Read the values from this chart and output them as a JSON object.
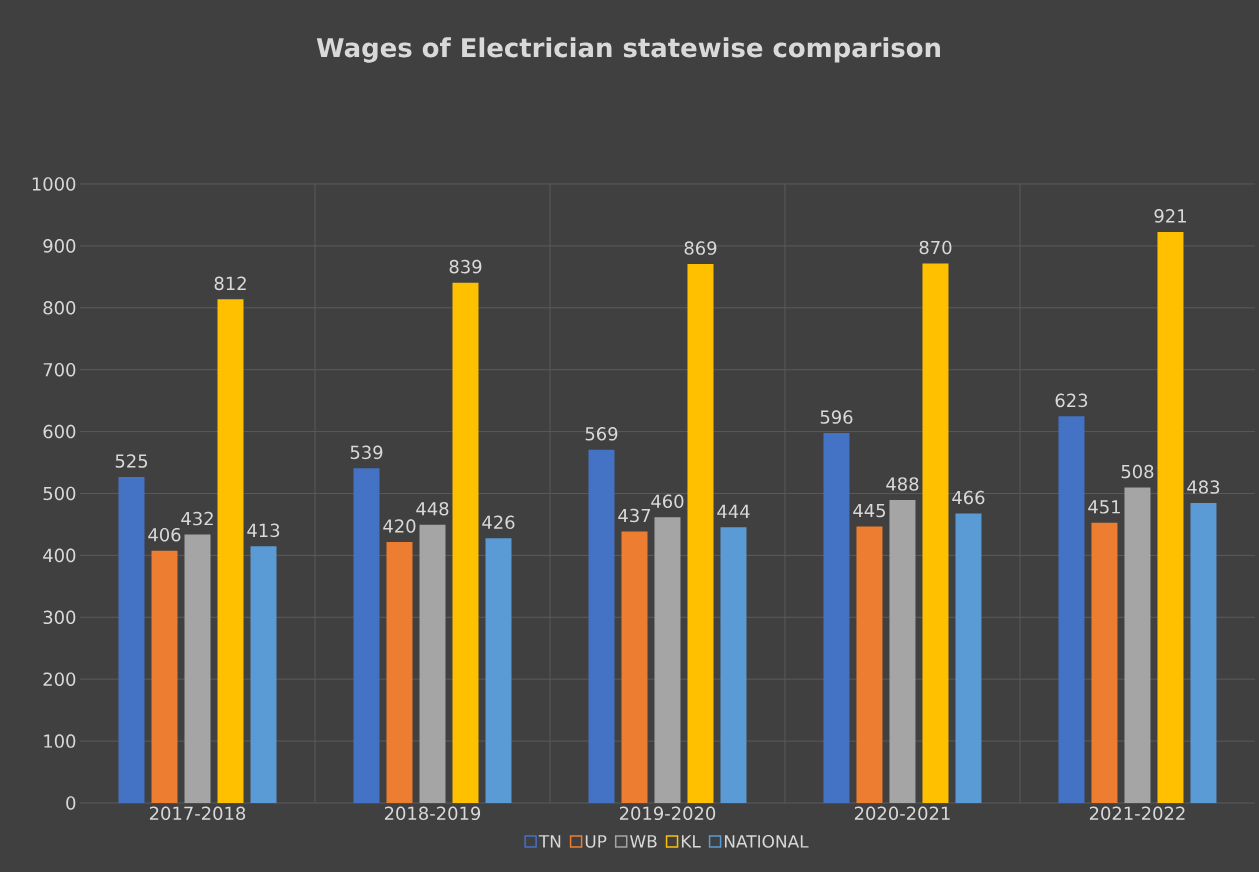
{
  "chart_data": {
    "type": "bar",
    "title": "Wages of Electrician statewise comparison",
    "categories": [
      "2017-2018",
      "2018-2019",
      "2019-2020",
      "2020-2021",
      "2021-2022"
    ],
    "series": [
      {
        "name": "TN",
        "color": "#4472c4",
        "values": [
          525,
          539,
          569,
          596,
          623
        ]
      },
      {
        "name": "UP",
        "color": "#ed7d31",
        "values": [
          406,
          420,
          437,
          445,
          451
        ]
      },
      {
        "name": "WB",
        "color": "#a5a5a5",
        "values": [
          432,
          448,
          460,
          488,
          508
        ]
      },
      {
        "name": "KL",
        "color": "#ffc000",
        "values": [
          812,
          839,
          869,
          870,
          921
        ]
      },
      {
        "name": "NATIONAL",
        "color": "#5b9bd5",
        "values": [
          413,
          426,
          444,
          466,
          483
        ]
      }
    ],
    "ylim": [
      0,
      1000
    ],
    "yticks": [
      0,
      100,
      200,
      300,
      400,
      500,
      600,
      700,
      800,
      900,
      1000
    ],
    "grid": true,
    "legend": "bottom",
    "data_labels": true
  }
}
